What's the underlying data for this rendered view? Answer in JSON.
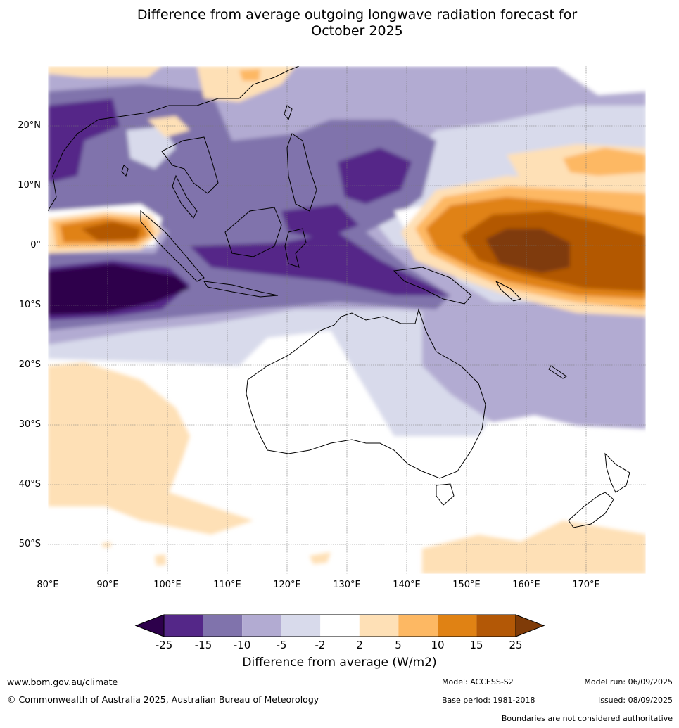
{
  "title_line1": "Difference from average outgoing longwave radiation forecast for",
  "title_line2": "October 2025",
  "map": {
    "lon_range": [
      80,
      180
    ],
    "lat_range": [
      -55,
      30
    ],
    "lat_labels": [
      "20°N",
      "10°N",
      "0°",
      "10°S",
      "20°S",
      "30°S",
      "40°S",
      "50°S"
    ],
    "lon_labels": [
      "80°E",
      "90°E",
      "100°E",
      "110°E",
      "120°E",
      "130°E",
      "140°E",
      "150°E",
      "160°E",
      "170°E"
    ],
    "grid": true
  },
  "colorbar": {
    "ticks": [
      "-25",
      "-15",
      "-10",
      "-5",
      "-2",
      "2",
      "5",
      "10",
      "15",
      "25"
    ],
    "colors": [
      "#2d004b",
      "#542788",
      "#8073ac",
      "#b2abd2",
      "#d8daeb",
      "#ffffff",
      "#fee0b6",
      "#fdb863",
      "#e08214",
      "#b35806",
      "#7f3b08"
    ],
    "label": "Difference from average (W/m2)"
  },
  "footer": {
    "website": "www.bom.gov.au/climate",
    "copyright": "© Commonwealth of Australia 2025, Australian Bureau of Meteorology",
    "model": "Model: ACCESS-S2",
    "base_period": "Base period: 1981-2018",
    "model_run": "Model run: 06/09/2025",
    "issued": "Issued: 08/09/2025",
    "disclaimer": "Boundaries are not considered authoritative"
  }
}
